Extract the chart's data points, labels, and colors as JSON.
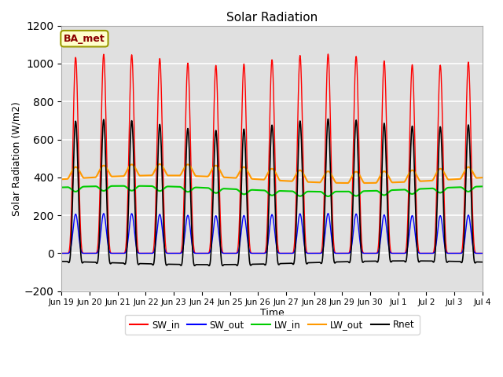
{
  "title": "Solar Radiation",
  "xlabel": "Time",
  "ylabel": "Solar Radiation (W/m2)",
  "ylim": [
    -200,
    1200
  ],
  "yticks": [
    -200,
    0,
    200,
    400,
    600,
    800,
    1000,
    1200
  ],
  "bg_color": "#e0e0e0",
  "grid_color": "white",
  "series": [
    "SW_in",
    "SW_out",
    "LW_in",
    "LW_out",
    "Rnet"
  ],
  "colors": [
    "#ff0000",
    "#0000ff",
    "#00cc00",
    "#ff9900",
    "#000000"
  ],
  "annotation": "BA_met",
  "n_days": 15,
  "dt_hours": 0.25
}
